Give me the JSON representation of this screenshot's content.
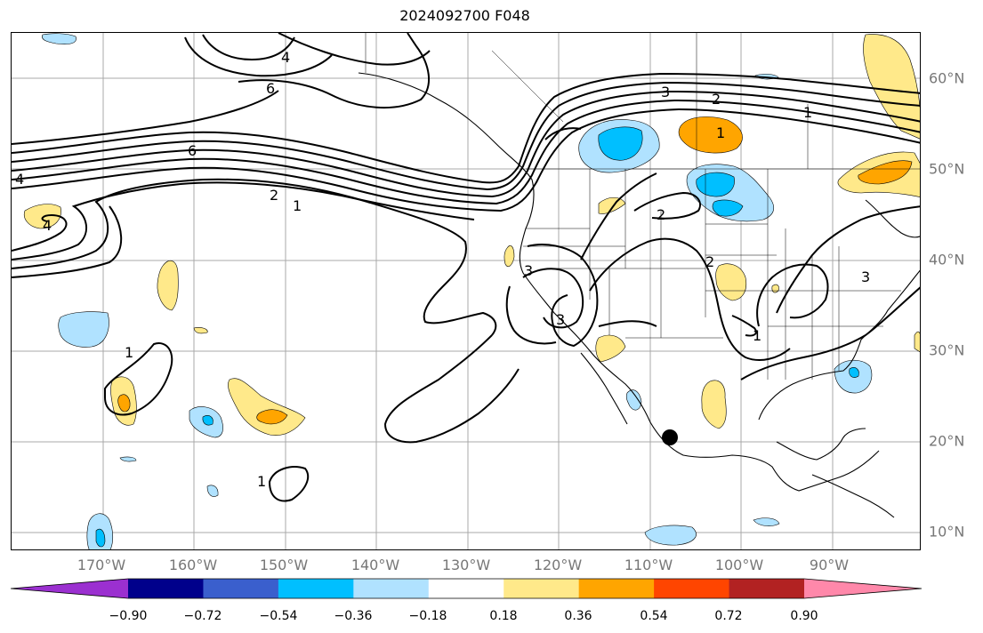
{
  "title": "2024092700 F048",
  "lon_labels": [
    "170°W",
    "160°W",
    "150°W",
    "140°W",
    "130°W",
    "120°W",
    "110°W",
    "100°W",
    "90°W"
  ],
  "lat_labels": [
    "60°N",
    "50°N",
    "40°N",
    "30°N",
    "20°N",
    "10°N"
  ],
  "contour_labels": [
    "4",
    "6",
    "6",
    "4",
    "4",
    "2",
    "1",
    "3",
    "3",
    "3",
    "1",
    "1",
    "2",
    "2",
    "2",
    "1",
    "1",
    "3",
    "1"
  ],
  "colorbar": {
    "ticks": [
      "−0.90",
      "−0.72",
      "−0.54",
      "−0.36",
      "−0.18",
      "0.18",
      "0.36",
      "0.54",
      "0.72",
      "0.90"
    ],
    "colors": [
      "#9b30d0",
      "#00008b",
      "#3a5fcd",
      "#00bfff",
      "#b0e2ff",
      "#ffffff",
      "#ffe98a",
      "#ffa500",
      "#ff4500",
      "#b22222",
      "#ff88aa"
    ]
  },
  "map_colors": {
    "pos_light": "#ffe98a",
    "pos_mid": "#ffa500",
    "neg_light": "#b0e2ff",
    "neg_mid": "#00bfff",
    "grid": "#a9a9a9"
  }
}
